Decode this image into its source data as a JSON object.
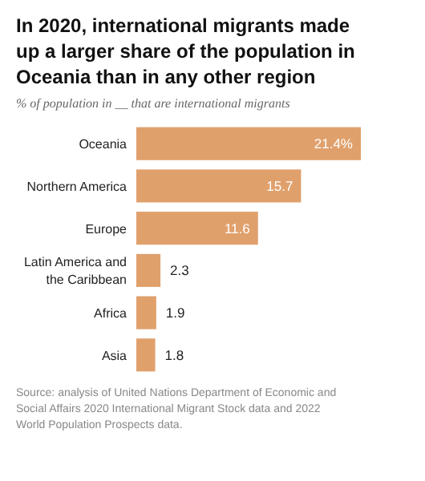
{
  "chart_data": {
    "type": "bar",
    "orientation": "horizontal",
    "title": "In 2020, international migrants made up a larger share of the population in Oceania than in any other region",
    "subtitle": "% of population in __ that are international migrants",
    "categories": [
      "Oceania",
      "Northern America",
      "Europe",
      "Latin America and the Caribbean",
      "Africa",
      "Asia"
    ],
    "values": [
      21.4,
      15.7,
      11.6,
      2.3,
      1.9,
      1.8
    ],
    "value_labels": [
      "21.4%",
      "15.7",
      "11.6",
      "2.3",
      "1.9",
      "1.8"
    ],
    "color": "#e0a06c",
    "annotations": [
      "Source: analysis of United Nations Department of Economic and Social Affairs 2020 International Migrant Stock data and 2022 World Population Prospects data."
    ]
  }
}
